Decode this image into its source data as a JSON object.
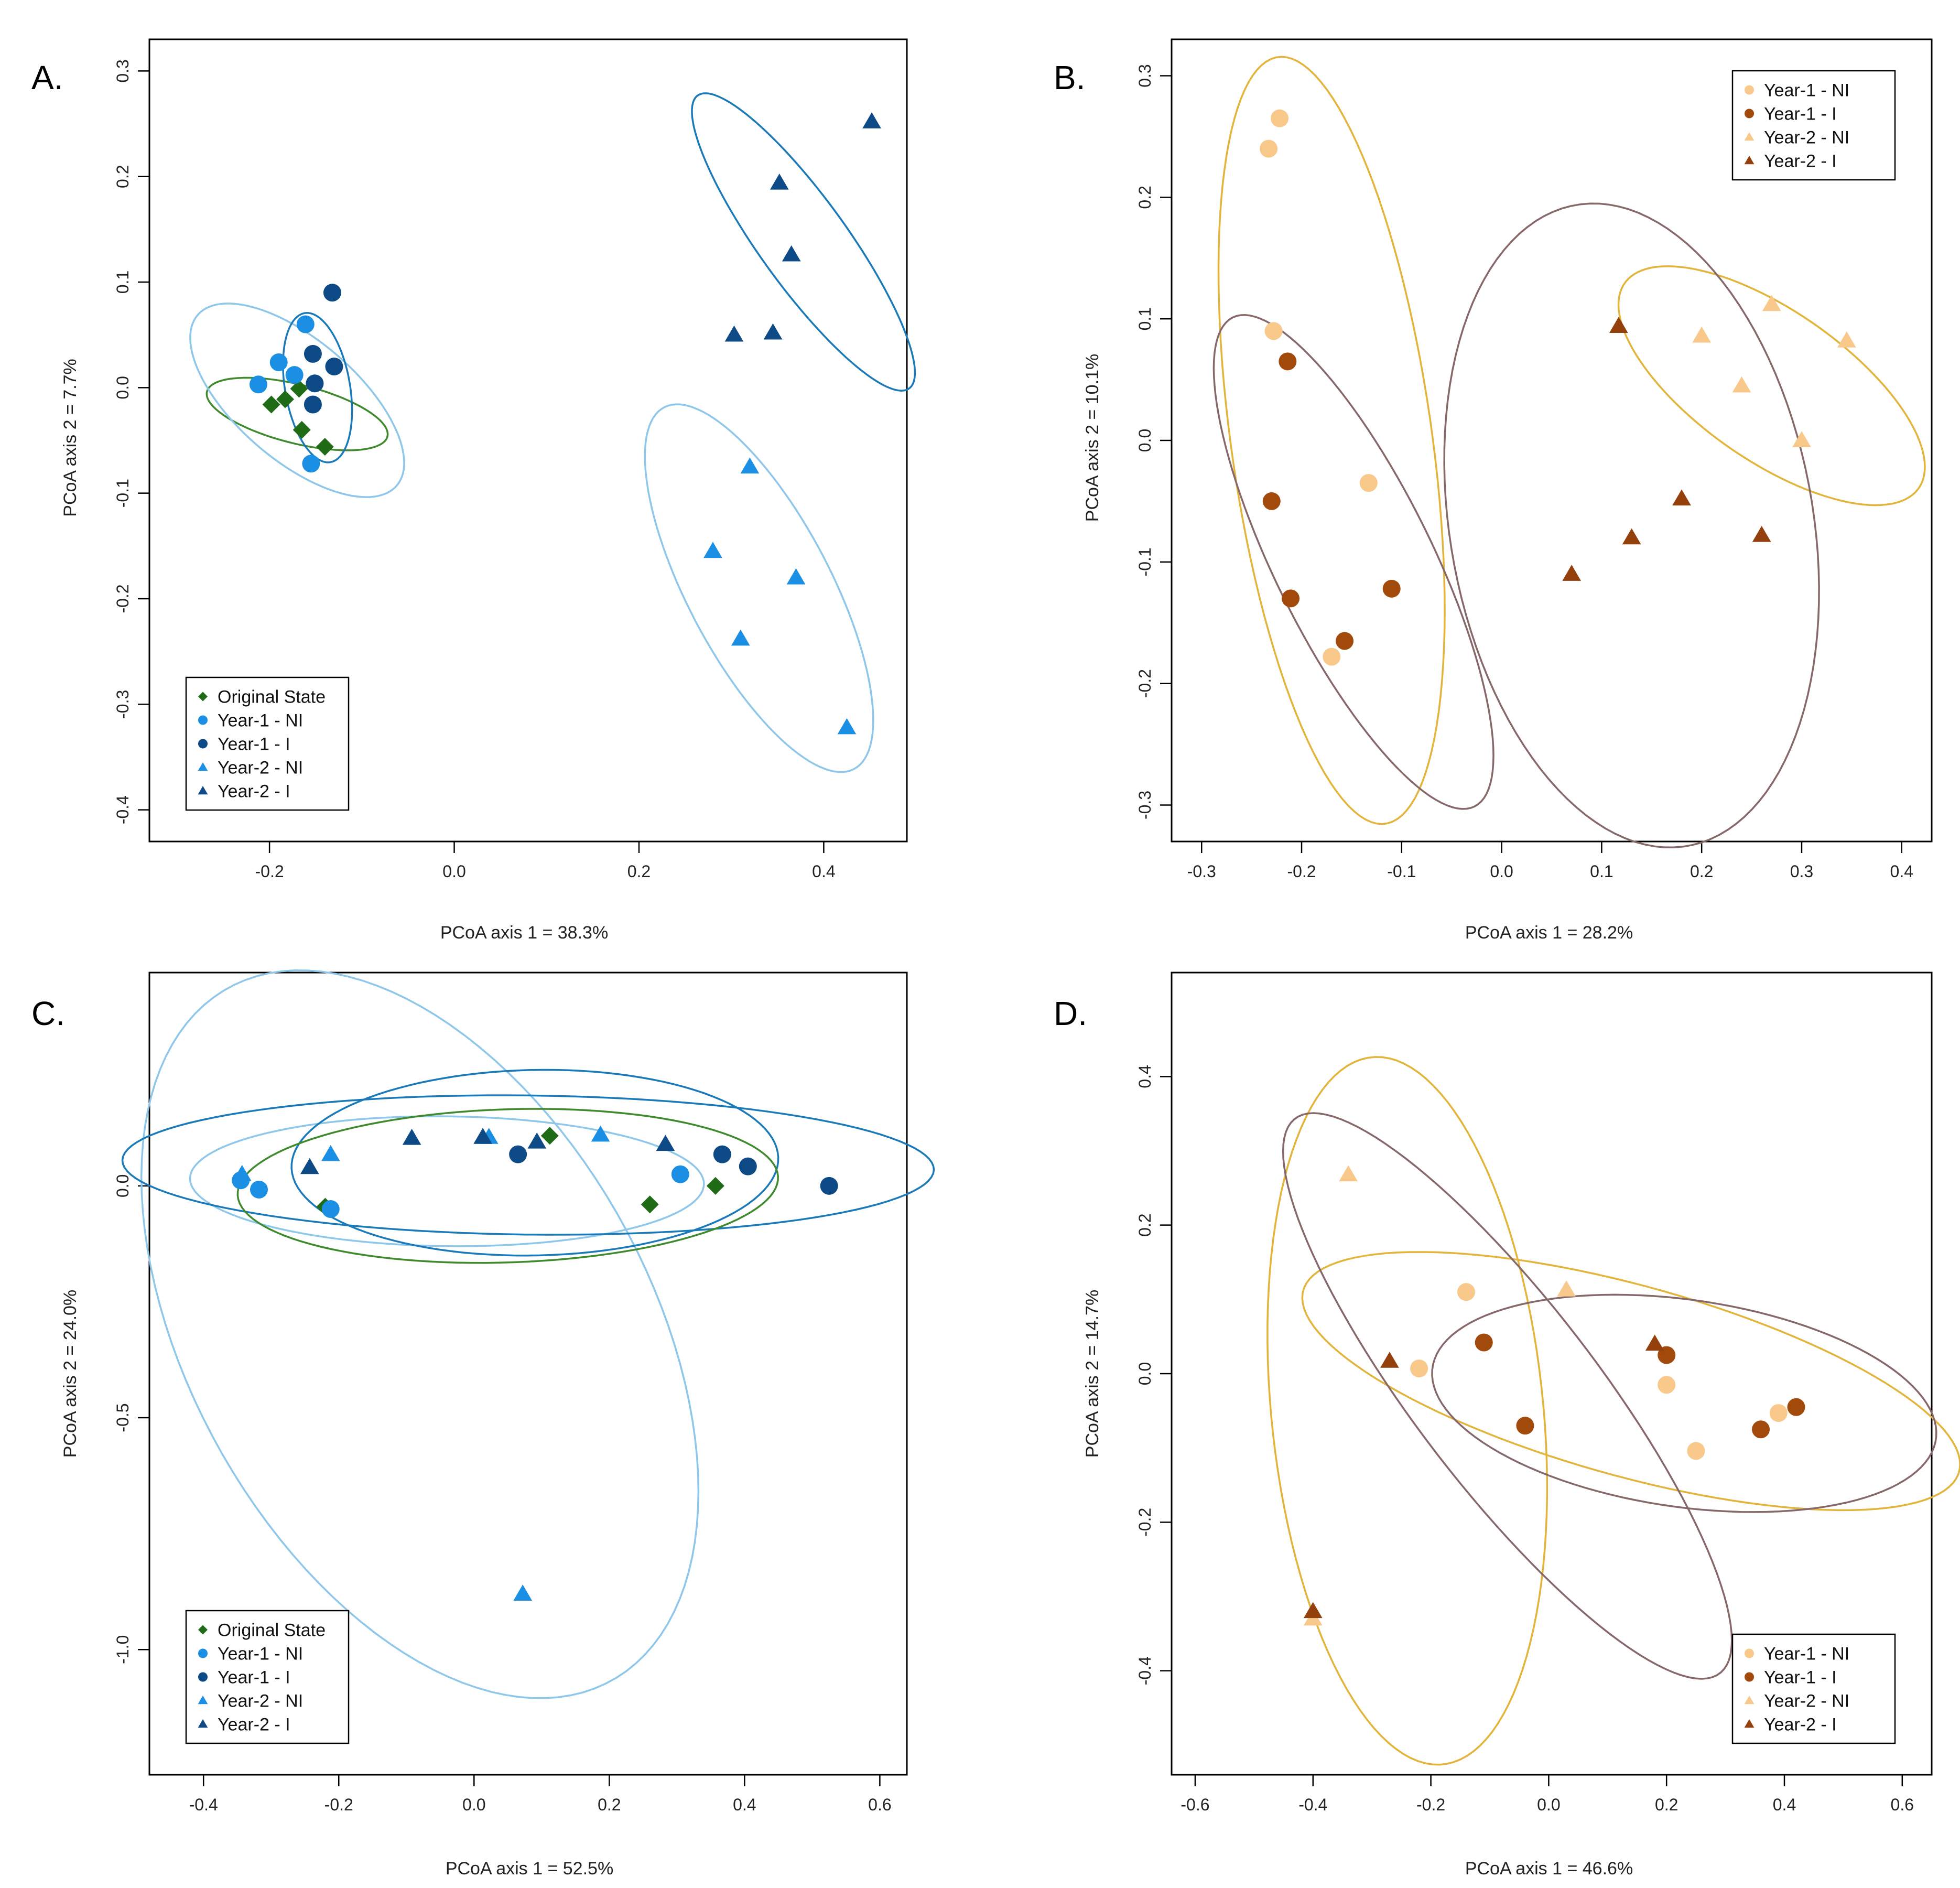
{
  "figure": {
    "colors": {
      "original_state": "#1f6b16",
      "y1_ni_blue": "#1a8fe3",
      "y1_i_blue": "#0d4a86",
      "y2_ni_blue": "#1a8fe3",
      "y2_i_blue": "#0d4a86",
      "ellipse_light_blue": "#8ec7ea",
      "ellipse_dark_blue": "#1a79b8",
      "ellipse_green": "#3e8a2c",
      "y1_ni_tan": "#f8c98a",
      "y1_i_brown": "#a24a0c",
      "y2_ni_tan": "#f8c98a",
      "y2_i_brown": "#93400c",
      "ellipse_gold": "#e3b43a",
      "ellipse_mauve": "#86686a"
    }
  },
  "chart_data": [
    {
      "panel": "A.",
      "type": "scatter",
      "xlabel": "PCoA axis 1 = 38.3%",
      "ylabel": "PCoA axis 2 = 7.7%",
      "xlim": [
        -0.33,
        0.49
      ],
      "ylim": [
        -0.43,
        0.33
      ],
      "xticks": [
        -0.2,
        0.0,
        0.2,
        0.4
      ],
      "xtick_labels": [
        "-0.2",
        "0.0",
        "0.2",
        "0.4"
      ],
      "yticks": [
        -0.4,
        -0.3,
        -0.2,
        -0.1,
        0.0,
        0.1,
        0.2,
        0.3
      ],
      "ytick_labels": [
        "-0.4",
        "-0.3",
        "-0.2",
        "-0.1",
        "0.0",
        "0.1",
        "0.2",
        "0.3"
      ],
      "legend_position": "bottom-left",
      "legend": [
        {
          "label": "Original State",
          "shape": "diamond",
          "color": "#1f6b16"
        },
        {
          "label": "Year-1 - NI",
          "shape": "circle",
          "color": "#1a8fe3"
        },
        {
          "label": "Year-1 - I",
          "shape": "circle",
          "color": "#0d4a86"
        },
        {
          "label": "Year-2 - NI",
          "shape": "triangle",
          "color": "#1a8fe3"
        },
        {
          "label": "Year-2 - I",
          "shape": "triangle",
          "color": "#0d4a86"
        }
      ],
      "series": [
        {
          "name": "Original State",
          "shape": "diamond",
          "color": "#1f6b16",
          "x": [
            -0.198,
            -0.183,
            -0.168,
            -0.165,
            -0.14
          ],
          "y": [
            -0.016,
            -0.011,
            -0.001,
            -0.04,
            -0.056
          ]
        },
        {
          "name": "Year-1 - NI",
          "shape": "circle",
          "color": "#1a8fe3",
          "x": [
            -0.212,
            -0.19,
            -0.173,
            -0.161,
            -0.155
          ],
          "y": [
            0.003,
            0.024,
            0.012,
            0.06,
            -0.072
          ]
        },
        {
          "name": "Year-1 - I",
          "shape": "circle",
          "color": "#0d4a86",
          "x": [
            -0.132,
            -0.153,
            -0.13,
            -0.151,
            -0.153
          ],
          "y": [
            0.09,
            0.032,
            0.02,
            0.004,
            -0.016
          ]
        },
        {
          "name": "Year-2 - NI",
          "shape": "triangle",
          "color": "#1a8fe3",
          "x": [
            0.32,
            0.28,
            0.37,
            0.31,
            0.425
          ],
          "y": [
            -0.075,
            -0.155,
            -0.18,
            -0.238,
            -0.322
          ]
        },
        {
          "name": "Year-2 - I",
          "shape": "triangle",
          "color": "#0d4a86",
          "x": [
            0.452,
            0.352,
            0.365,
            0.303,
            0.345
          ],
          "y": [
            0.252,
            0.194,
            0.126,
            0.05,
            0.052
          ]
        }
      ],
      "ellipses": [
        {
          "group": "Original State",
          "color": "#3e8a2c",
          "cx": -0.17,
          "cy": -0.025,
          "rx": 0.1,
          "ry": 0.028,
          "angle_deg": -12
        },
        {
          "group": "Year-1 - NI",
          "color": "#8ec7ea",
          "cx": -0.17,
          "cy": -0.012,
          "rx": 0.135,
          "ry": 0.06,
          "angle_deg": -35
        },
        {
          "group": "Year-1 - I",
          "color": "#1a79b8",
          "cx": -0.148,
          "cy": 0.0,
          "rx": 0.072,
          "ry": 0.035,
          "angle_deg": -78
        },
        {
          "group": "Year-2 - NI",
          "color": "#8ec7ea",
          "cx": 0.33,
          "cy": -0.19,
          "rx": 0.2,
          "ry": 0.075,
          "angle_deg": -58
        },
        {
          "group": "Year-2 - I",
          "color": "#1a79b8",
          "cx": 0.378,
          "cy": 0.138,
          "rx": 0.18,
          "ry": 0.045,
          "angle_deg": -50
        }
      ]
    },
    {
      "panel": "B.",
      "type": "scatter",
      "xlabel": "PCoA axis 1 = 28.2%",
      "ylabel": "PCoA axis 2 = 10.1%",
      "xlim": [
        -0.33,
        0.43
      ],
      "ylim": [
        -0.33,
        0.33
      ],
      "xticks": [
        -0.3,
        -0.2,
        -0.1,
        0.0,
        0.1,
        0.2,
        0.3,
        0.4
      ],
      "xtick_labels": [
        "-0.3",
        "-0.2",
        "-0.1",
        "0.0",
        "0.1",
        "0.2",
        "0.3",
        "0.4"
      ],
      "yticks": [
        -0.3,
        -0.2,
        -0.1,
        0.0,
        0.1,
        0.2,
        0.3
      ],
      "ytick_labels": [
        "-0.3",
        "-0.2",
        "-0.1",
        "0.0",
        "0.1",
        "0.2",
        "0.3"
      ],
      "legend_position": "top-right",
      "legend": [
        {
          "label": "Year-1 - NI",
          "shape": "circle",
          "color": "#f8c98a"
        },
        {
          "label": "Year-1 - I",
          "shape": "circle",
          "color": "#a24a0c"
        },
        {
          "label": "Year-2 - NI",
          "shape": "triangle",
          "color": "#f8c98a"
        },
        {
          "label": "Year-2 - I",
          "shape": "triangle",
          "color": "#93400c"
        }
      ],
      "series": [
        {
          "name": "Year-1 - NI",
          "shape": "circle",
          "color": "#f8c98a",
          "x": [
            -0.222,
            -0.233,
            -0.228,
            -0.133,
            -0.17
          ],
          "y": [
            0.265,
            0.24,
            0.09,
            -0.035,
            -0.178
          ]
        },
        {
          "name": "Year-1 - I",
          "shape": "circle",
          "color": "#a24a0c",
          "x": [
            -0.214,
            -0.23,
            -0.211,
            -0.157,
            -0.11
          ],
          "y": [
            0.065,
            -0.05,
            -0.13,
            -0.165,
            -0.122
          ]
        },
        {
          "name": "Year-2 - NI",
          "shape": "triangle",
          "color": "#f8c98a",
          "x": [
            0.27,
            0.2,
            0.345,
            0.24,
            0.3
          ],
          "y": [
            0.112,
            0.086,
            0.082,
            0.045,
            0.0
          ]
        },
        {
          "name": "Year-2 - I",
          "shape": "triangle",
          "color": "#93400c",
          "x": [
            0.117,
            0.18,
            0.13,
            0.07,
            0.26
          ],
          "y": [
            0.094,
            -0.048,
            -0.08,
            -0.11,
            -0.078
          ]
        }
      ],
      "ellipses": [
        {
          "group": "Year-1 - NI",
          "color": "#e3b43a",
          "cx": -0.17,
          "cy": 0.0,
          "rx": 0.32,
          "ry": 0.1,
          "angle_deg": -80
        },
        {
          "group": "Year-1 - I",
          "color": "#86686a",
          "cx": -0.148,
          "cy": -0.1,
          "rx": 0.235,
          "ry": 0.075,
          "angle_deg": -58
        },
        {
          "group": "Year-2 - NI",
          "color": "#e3b43a",
          "cx": 0.27,
          "cy": 0.045,
          "rx": 0.17,
          "ry": 0.065,
          "angle_deg": -28
        },
        {
          "group": "Year-2 - I",
          "color": "#86686a",
          "cx": 0.13,
          "cy": -0.07,
          "rx": 0.27,
          "ry": 0.18,
          "angle_deg": -75
        }
      ]
    },
    {
      "panel": "C.",
      "type": "scatter",
      "xlabel": "PCoA axis 1 = 52.5%",
      "ylabel": "PCoA axis 2 = 24.0%",
      "xlim": [
        -0.48,
        0.64
      ],
      "ylim": [
        -1.27,
        0.46
      ],
      "xticks": [
        -0.4,
        -0.2,
        0.0,
        0.2,
        0.4,
        0.6
      ],
      "xtick_labels": [
        "-0.4",
        "-0.2",
        "0.0",
        "0.2",
        "0.4",
        "0.6"
      ],
      "yticks": [
        -1.0,
        -0.5,
        0.0
      ],
      "ytick_labels": [
        "-1.0",
        "-0.5",
        "0.0"
      ],
      "legend_position": "bottom-left",
      "legend": [
        {
          "label": "Original State",
          "shape": "diamond",
          "color": "#1f6b16"
        },
        {
          "label": "Year-1 - NI",
          "shape": "circle",
          "color": "#1a8fe3"
        },
        {
          "label": "Year-1 - I",
          "shape": "circle",
          "color": "#0d4a86"
        },
        {
          "label": "Year-2 - NI",
          "shape": "triangle",
          "color": "#1a8fe3"
        },
        {
          "label": "Year-2 - I",
          "shape": "triangle",
          "color": "#0d4a86"
        }
      ],
      "series": [
        {
          "name": "Original State",
          "shape": "diamond",
          "color": "#1f6b16",
          "x": [
            0.112,
            -0.22,
            0.26,
            0.357
          ],
          "y": [
            0.108,
            -0.045,
            -0.04,
            0.0
          ]
        },
        {
          "name": "Year-1 - NI",
          "shape": "circle",
          "color": "#1a8fe3",
          "x": [
            -0.345,
            -0.318,
            -0.212,
            0.305
          ],
          "y": [
            0.012,
            -0.008,
            -0.05,
            0.025
          ]
        },
        {
          "name": "Year-1 - I",
          "shape": "circle",
          "color": "#0d4a86",
          "x": [
            0.065,
            0.367,
            0.405,
            0.525
          ],
          "y": [
            0.068,
            0.068,
            0.042,
            0.0
          ]
        },
        {
          "name": "Year-2 - NI",
          "shape": "triangle",
          "color": "#1a8fe3",
          "x": [
            -0.343,
            -0.212,
            0.022,
            0.187,
            0.072
          ],
          "y": [
            0.025,
            0.068,
            0.105,
            0.11,
            -0.88
          ]
        },
        {
          "name": "Year-2 - I",
          "shape": "triangle",
          "color": "#0d4a86",
          "x": [
            -0.243,
            -0.092,
            0.013,
            0.093,
            0.283
          ],
          "y": [
            0.04,
            0.103,
            0.105,
            0.095,
            0.09
          ]
        }
      ],
      "ellipses": [
        {
          "group": "Year-2 - NI",
          "color": "#8ec7ea",
          "cx": -0.08,
          "cy": -0.32,
          "rx": 0.81,
          "ry": 0.36,
          "angle_deg": -74
        },
        {
          "group": "Year-1 - NI",
          "color": "#8ec7ea",
          "cx": -0.04,
          "cy": 0.01,
          "rx": 0.38,
          "ry": 0.14,
          "angle_deg": -1
        },
        {
          "group": "Year-2 - I",
          "color": "#1a79b8",
          "cx": 0.09,
          "cy": 0.05,
          "rx": 0.36,
          "ry": 0.2,
          "angle_deg": 2
        },
        {
          "group": "Year-1 - I",
          "color": "#1a79b8",
          "cx": 0.08,
          "cy": 0.045,
          "rx": 0.6,
          "ry": 0.15,
          "angle_deg": -1
        },
        {
          "group": "Original State",
          "color": "#3e8a2c",
          "cx": 0.05,
          "cy": 0.0,
          "rx": 0.4,
          "ry": 0.165,
          "angle_deg": 3
        }
      ]
    },
    {
      "panel": "D.",
      "type": "scatter",
      "xlabel": "PCoA axis 1 = 46.6%",
      "ylabel": "PCoA axis 2 = 14.7%",
      "xlim": [
        -0.64,
        0.65
      ],
      "ylim": [
        -0.54,
        0.54
      ],
      "xticks": [
        -0.6,
        -0.4,
        -0.2,
        0.0,
        0.2,
        0.4,
        0.6
      ],
      "xtick_labels": [
        "-0.6",
        "-0.4",
        "-0.2",
        "0.0",
        "0.2",
        "0.4",
        "0.6"
      ],
      "yticks": [
        -0.4,
        -0.2,
        0.0,
        0.2,
        0.4
      ],
      "ytick_labels": [
        "-0.4",
        "-0.2",
        "0.0",
        "0.2",
        "0.4"
      ],
      "legend_position": "bottom-right",
      "legend": [
        {
          "label": "Year-1 - NI",
          "shape": "circle",
          "color": "#f8c98a"
        },
        {
          "label": "Year-1 - I",
          "shape": "circle",
          "color": "#a24a0c"
        },
        {
          "label": "Year-2 - NI",
          "shape": "triangle",
          "color": "#f8c98a"
        },
        {
          "label": "Year-2 - I",
          "shape": "triangle",
          "color": "#93400c"
        }
      ],
      "series": [
        {
          "name": "Year-1 - NI",
          "shape": "circle",
          "color": "#f8c98a",
          "x": [
            -0.14,
            -0.22,
            0.2,
            0.25,
            0.39
          ],
          "y": [
            0.11,
            0.007,
            -0.015,
            -0.104,
            -0.053
          ]
        },
        {
          "name": "Year-1 - I",
          "shape": "circle",
          "color": "#a24a0c",
          "x": [
            -0.11,
            -0.04,
            0.2,
            0.36,
            0.42
          ],
          "y": [
            0.042,
            -0.07,
            0.025,
            -0.075,
            -0.045
          ]
        },
        {
          "name": "Year-2 - NI",
          "shape": "triangle",
          "color": "#f8c98a",
          "x": [
            -0.34,
            0.03,
            -0.4
          ],
          "y": [
            0.268,
            0.113,
            -0.33
          ]
        },
        {
          "name": "Year-2 - I",
          "shape": "triangle",
          "color": "#93400c",
          "x": [
            -0.27,
            0.18,
            -0.4
          ],
          "y": [
            0.017,
            0.04,
            -0.32
          ]
        }
      ],
      "ellipses": [
        {
          "group": "Year-2 - NI",
          "color": "#e3b43a",
          "cx": -0.24,
          "cy": -0.05,
          "rx": 0.48,
          "ry": 0.23,
          "angle_deg": -82
        },
        {
          "group": "Year-1 - NI",
          "color": "#e3b43a",
          "cx": 0.14,
          "cy": -0.01,
          "rx": 0.57,
          "ry": 0.13,
          "angle_deg": -12
        },
        {
          "group": "Year-1 - I",
          "color": "#86686a",
          "cx": 0.23,
          "cy": -0.04,
          "rx": 0.43,
          "ry": 0.14,
          "angle_deg": -6
        },
        {
          "group": "Year-2 - I",
          "color": "#86686a",
          "cx": -0.07,
          "cy": -0.03,
          "rx": 0.52,
          "ry": 0.14,
          "angle_deg": -45
        }
      ]
    }
  ]
}
